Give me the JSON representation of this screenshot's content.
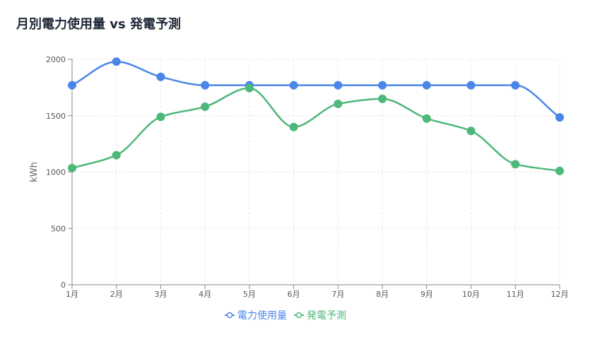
{
  "title": "月別電力使用量 vs 発電予測",
  "colors": {
    "usage": "#4a86e8",
    "forecast": "#4db87a",
    "axis": "#888888",
    "grid": "#e6e6e6"
  },
  "chart_data": {
    "type": "line",
    "title": "月別電力使用量 vs 発電予測",
    "ylabel": "kWh",
    "xlabel": "",
    "categories": [
      "1月",
      "2月",
      "3月",
      "4月",
      "5月",
      "6月",
      "7月",
      "8月",
      "9月",
      "10月",
      "11月",
      "12月"
    ],
    "ylim": [
      0,
      2000
    ],
    "yticks": [
      0,
      500,
      1000,
      1500,
      2000
    ],
    "grid": true,
    "legend": "bottom",
    "series": [
      {
        "name": "電力使用量",
        "color": "#4a86e8",
        "values": [
          1770,
          1980,
          1845,
          1770,
          1770,
          1770,
          1770,
          1770,
          1770,
          1770,
          1770,
          1485
        ]
      },
      {
        "name": "発電予測",
        "color": "#4db87a",
        "values": [
          1035,
          1150,
          1490,
          1580,
          1745,
          1400,
          1605,
          1650,
          1475,
          1365,
          1070,
          1010
        ]
      }
    ]
  }
}
